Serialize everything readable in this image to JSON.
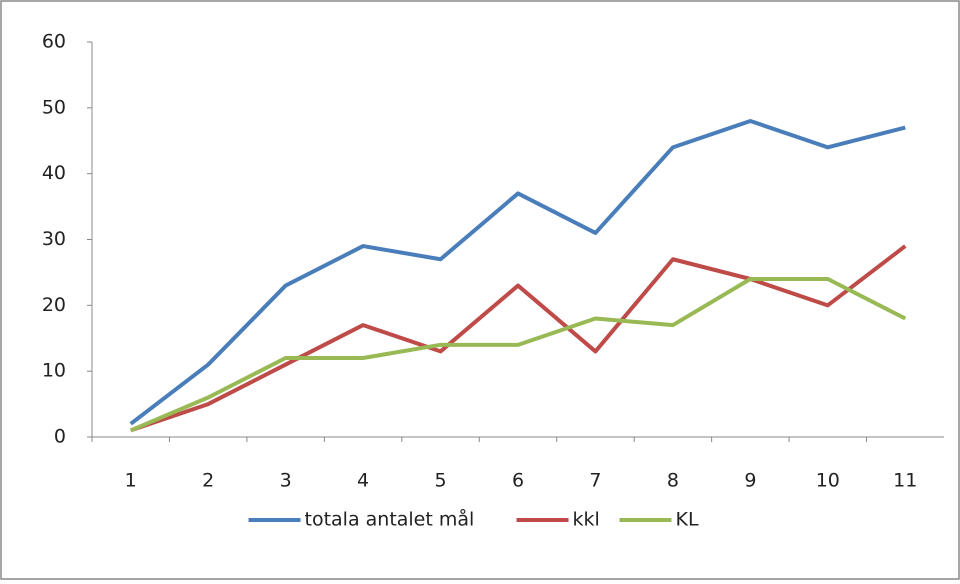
{
  "chart_data": {
    "type": "line",
    "categories": [
      "1",
      "2",
      "3",
      "4",
      "5",
      "6",
      "7",
      "8",
      "9",
      "10",
      "11"
    ],
    "series": [
      {
        "name": "totala antalet mål",
        "color": "#4a7ebb",
        "values": [
          2,
          11,
          23,
          29,
          27,
          37,
          31,
          44,
          48,
          44,
          47
        ]
      },
      {
        "name": "kkl",
        "color": "#be4b48",
        "values": [
          1,
          5,
          11,
          17,
          13,
          23,
          13,
          27,
          24,
          20,
          29
        ]
      },
      {
        "name": "KL",
        "color": "#98b954",
        "values": [
          1,
          6,
          12,
          12,
          14,
          14,
          18,
          17,
          24,
          24,
          18
        ]
      }
    ],
    "ylim": [
      0,
      60
    ],
    "yticks": [
      0,
      10,
      20,
      30,
      40,
      50,
      60
    ],
    "grid": false,
    "legend": "bottom"
  }
}
